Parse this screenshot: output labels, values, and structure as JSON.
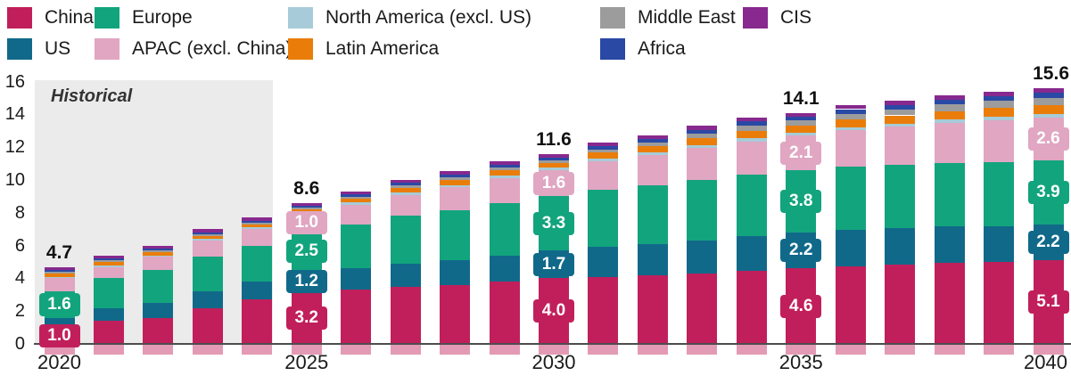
{
  "annotation": {
    "historical_label": "Historical"
  },
  "legend": {
    "rows": [
      [
        "China",
        "Europe",
        "North America (excl. US)",
        "Middle East",
        "CIS"
      ],
      [
        "US",
        "APAC (excl. China)",
        "Latin America",
        "Africa"
      ]
    ]
  },
  "chart_data": {
    "type": "bar",
    "stacked": true,
    "title": "",
    "xlabel": "",
    "ylabel": "",
    "x": [
      2020,
      2021,
      2022,
      2023,
      2024,
      2025,
      2026,
      2027,
      2028,
      2029,
      2030,
      2031,
      2032,
      2033,
      2034,
      2035,
      2036,
      2037,
      2038,
      2039,
      2040
    ],
    "ylim": [
      0,
      16
    ],
    "yticks": [
      0,
      2,
      4,
      6,
      8,
      10,
      12,
      14,
      16
    ],
    "xticks": [
      2020,
      2025,
      2030,
      2035,
      2040
    ],
    "grid": false,
    "legend_position": "top",
    "series": [
      {
        "name": "China",
        "color": "#c11f5b",
        "values": [
          1.0,
          1.4,
          1.6,
          2.2,
          2.7,
          3.2,
          3.3,
          3.5,
          3.6,
          3.8,
          4.0,
          4.1,
          4.2,
          4.3,
          4.45,
          4.6,
          4.75,
          4.85,
          4.95,
          5.0,
          5.1
        ]
      },
      {
        "name": "US",
        "color": "#11698a",
        "values": [
          0.6,
          0.75,
          0.9,
          1.0,
          1.1,
          1.2,
          1.3,
          1.4,
          1.5,
          1.6,
          1.7,
          1.8,
          1.9,
          2.0,
          2.1,
          2.2,
          2.2,
          2.2,
          2.2,
          2.2,
          2.2
        ]
      },
      {
        "name": "Europe",
        "color": "#12a47d",
        "values": [
          1.6,
          1.85,
          2.0,
          2.1,
          2.2,
          2.5,
          2.7,
          2.9,
          3.05,
          3.2,
          3.3,
          3.5,
          3.6,
          3.7,
          3.75,
          3.8,
          3.85,
          3.85,
          3.9,
          3.9,
          3.9
        ]
      },
      {
        "name": "APAC (excl. China)",
        "color": "#e0a6c2",
        "values": [
          0.8,
          0.7,
          0.8,
          1.0,
          1.0,
          1.0,
          1.2,
          1.3,
          1.4,
          1.5,
          1.6,
          1.75,
          1.8,
          1.95,
          2.05,
          2.1,
          2.25,
          2.35,
          2.45,
          2.55,
          2.6
        ]
      },
      {
        "name": "North America (excl. US)",
        "color": "#a7cbd8",
        "values": [
          0.1,
          0.1,
          0.1,
          0.1,
          0.1,
          0.1,
          0.12,
          0.13,
          0.14,
          0.15,
          0.15,
          0.15,
          0.16,
          0.17,
          0.18,
          0.17,
          0.18,
          0.19,
          0.19,
          0.2,
          0.2
        ]
      },
      {
        "name": "Latin America",
        "color": "#ea7d0a",
        "values": [
          0.2,
          0.2,
          0.2,
          0.2,
          0.2,
          0.2,
          0.25,
          0.3,
          0.32,
          0.33,
          0.3,
          0.36,
          0.4,
          0.44,
          0.48,
          0.45,
          0.48,
          0.5,
          0.52,
          0.54,
          0.55
        ]
      },
      {
        "name": "Middle East",
        "color": "#9c9c9c",
        "values": [
          0.1,
          0.1,
          0.1,
          0.1,
          0.1,
          0.1,
          0.12,
          0.14,
          0.16,
          0.17,
          0.17,
          0.2,
          0.23,
          0.26,
          0.29,
          0.3,
          0.33,
          0.36,
          0.39,
          0.42,
          0.45
        ]
      },
      {
        "name": "Africa",
        "color": "#2a49a5",
        "values": [
          0.1,
          0.1,
          0.1,
          0.1,
          0.1,
          0.1,
          0.13,
          0.15,
          0.17,
          0.2,
          0.16,
          0.19,
          0.22,
          0.24,
          0.26,
          0.26,
          0.28,
          0.28,
          0.29,
          0.3,
          0.3
        ]
      },
      {
        "name": "CIS",
        "color": "#87298e",
        "values": [
          0.2,
          0.2,
          0.2,
          0.2,
          0.2,
          0.2,
          0.2,
          0.2,
          0.2,
          0.2,
          0.22,
          0.21,
          0.22,
          0.23,
          0.24,
          0.22,
          0.23,
          0.24,
          0.25,
          0.26,
          0.3
        ]
      }
    ],
    "total_labels": [
      {
        "x": 2020,
        "text": "4.7"
      },
      {
        "x": 2025,
        "text": "8.6"
      },
      {
        "x": 2030,
        "text": "11.6"
      },
      {
        "x": 2035,
        "text": "14.1"
      },
      {
        "x": 2040,
        "text": "15.6"
      }
    ],
    "segment_labels": [
      {
        "x": 2020,
        "series": "China",
        "text": "1.0"
      },
      {
        "x": 2020,
        "series": "Europe",
        "text": "1.6"
      },
      {
        "x": 2025,
        "series": "China",
        "text": "3.2"
      },
      {
        "x": 2025,
        "series": "US",
        "text": "1.2"
      },
      {
        "x": 2025,
        "series": "Europe",
        "text": "2.5"
      },
      {
        "x": 2025,
        "series": "APAC (excl. China)",
        "text": "1.0"
      },
      {
        "x": 2030,
        "series": "China",
        "text": "4.0"
      },
      {
        "x": 2030,
        "series": "US",
        "text": "1.7"
      },
      {
        "x": 2030,
        "series": "Europe",
        "text": "3.3"
      },
      {
        "x": 2030,
        "series": "APAC (excl. China)",
        "text": "1.6"
      },
      {
        "x": 2035,
        "series": "China",
        "text": "4.6"
      },
      {
        "x": 2035,
        "series": "US",
        "text": "2.2"
      },
      {
        "x": 2035,
        "series": "Europe",
        "text": "3.8"
      },
      {
        "x": 2035,
        "series": "APAC (excl. China)",
        "text": "2.1"
      },
      {
        "x": 2040,
        "series": "China",
        "text": "5.1"
      },
      {
        "x": 2040,
        "series": "US",
        "text": "2.2"
      },
      {
        "x": 2040,
        "series": "Europe",
        "text": "3.9"
      },
      {
        "x": 2040,
        "series": "APAC (excl. China)",
        "text": "2.6"
      }
    ],
    "annotations": [
      {
        "text": "Historical",
        "type": "shaded-region",
        "x_range": [
          2020,
          2024
        ]
      }
    ]
  }
}
